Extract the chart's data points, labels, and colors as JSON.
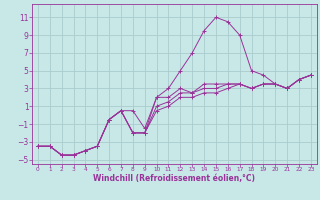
{
  "xlabel": "Windchill (Refroidissement éolien,°C)",
  "background_color": "#c8e8e8",
  "grid_color": "#aacccc",
  "line_color": "#993399",
  "xlim": [
    -0.5,
    23.5
  ],
  "ylim": [
    -5.5,
    12.5
  ],
  "yticks": [
    -5,
    -3,
    -1,
    1,
    3,
    5,
    7,
    9,
    11
  ],
  "xticks": [
    0,
    1,
    2,
    3,
    4,
    5,
    6,
    7,
    8,
    9,
    10,
    11,
    12,
    13,
    14,
    15,
    16,
    17,
    18,
    19,
    20,
    21,
    22,
    23
  ],
  "lines": [
    [
      -3.5,
      -3.5,
      -4.5,
      -4.5,
      -4.0,
      -3.5,
      -0.5,
      0.5,
      0.5,
      -1.5,
      2.0,
      3.0,
      5.0,
      7.0,
      9.5,
      11.0,
      10.5,
      9.0,
      5.0,
      4.5,
      3.5,
      3.0,
      4.0,
      4.5
    ],
    [
      -3.5,
      -3.5,
      -4.5,
      -4.5,
      -4.0,
      -3.5,
      -0.5,
      0.5,
      -2.0,
      -2.0,
      2.0,
      2.0,
      3.0,
      2.5,
      3.5,
      3.5,
      3.5,
      3.5,
      3.0,
      3.5,
      3.5,
      3.0,
      4.0,
      4.5
    ],
    [
      -3.5,
      -3.5,
      -4.5,
      -4.5,
      -4.0,
      -3.5,
      -0.5,
      0.5,
      -2.0,
      -2.0,
      1.0,
      1.5,
      2.5,
      2.5,
      3.0,
      3.0,
      3.5,
      3.5,
      3.0,
      3.5,
      3.5,
      3.0,
      4.0,
      4.5
    ],
    [
      -3.5,
      -3.5,
      -4.5,
      -4.5,
      -4.0,
      -3.5,
      -0.5,
      0.5,
      -2.0,
      -2.0,
      0.5,
      1.0,
      2.0,
      2.0,
      2.5,
      2.5,
      3.0,
      3.5,
      3.0,
      3.5,
      3.5,
      3.0,
      4.0,
      4.5
    ]
  ],
  "xlabel_fontsize": 5.5,
  "ytick_fontsize": 5.5,
  "xtick_fontsize": 4.2
}
